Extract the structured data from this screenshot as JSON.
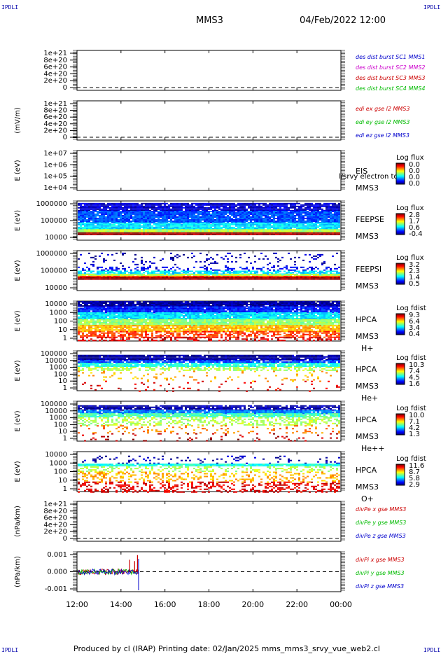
{
  "header": {
    "spacecraft": "MMS3",
    "datetime": "04/Feb/2022 12:00",
    "corner_left": "IPDLI",
    "corner_right": "IPDLI"
  },
  "footer": {
    "text": "Produced by cl (IRAP)   Printing date: 02/Jan/2025   mms_mms3_srvy_vue_web2.cl"
  },
  "chart_data": {
    "type": "heatmap",
    "x": {
      "ticks": [
        "12:00",
        "14:00",
        "16:00",
        "18:00",
        "20:00",
        "22:00",
        "00:00"
      ],
      "range_hours": [
        12,
        24
      ],
      "data_end_hour": 14.8
    },
    "panels": [
      {
        "id": "p1",
        "kind": "lines-empty",
        "ylabel": "",
        "yticks": [
          "1e+21",
          "8e+20",
          "6e+20",
          "4e+20",
          "2e+20",
          "0"
        ],
        "legend": [
          {
            "text": "des dist burst SC1 MMS1",
            "color": "#0000cc"
          },
          {
            "text": "des dist burst SC2 MMS2",
            "color": "#cc00cc"
          },
          {
            "text": "des dist burst SC3 MMS3",
            "color": "#cc0000"
          },
          {
            "text": "des dist burst SC4 MMS4",
            "color": "#00bb00"
          }
        ]
      },
      {
        "id": "p2",
        "kind": "lines-empty",
        "ylabel": "(mV/m)",
        "yticks": [
          "1e+21",
          "8e+20",
          "6e+20",
          "4e+20",
          "2e+20",
          "0"
        ],
        "legend": [
          {
            "text": "edi ex gse l2 MMS3",
            "color": "#cc0000"
          },
          {
            "text": "edi ey gse l2 MMS3",
            "color": "#00bb00"
          },
          {
            "text": "edi ez gse l2 MMS3",
            "color": "#0000cc"
          }
        ]
      },
      {
        "id": "p3",
        "kind": "spectrogram-empty",
        "ylabel": "E (eV)",
        "yticks": [
          "1e+07",
          "1e+06",
          "1e+05",
          "1e+04"
        ],
        "instrument": [
          "EIS",
          "MMS3"
        ],
        "overlay_text": "l/srvy electron to",
        "colorbar": {
          "title": "Log flux",
          "ticks": [
            "0.0",
            "0.0",
            "0.0",
            "0.0"
          ]
        }
      },
      {
        "id": "p4",
        "kind": "spectrogram",
        "ylabel": "E (eV)",
        "yticks": [
          "1000000",
          "100000",
          "10000"
        ],
        "instrument": [
          "FEEPSE",
          "MMS3"
        ],
        "colorbar": {
          "title": "Log flux",
          "ticks": [
            "2.8",
            "1.7",
            "0.6",
            "-0.4"
          ]
        },
        "bands": [
          {
            "from": 0.05,
            "to": 0.25,
            "level": 0.08,
            "density": 0.9
          },
          {
            "from": 0.25,
            "to": 0.55,
            "level": 0.2,
            "density": 0.95
          },
          {
            "from": 0.55,
            "to": 0.72,
            "level": 0.35,
            "density": 0.95
          },
          {
            "from": 0.72,
            "to": 0.8,
            "level": 0.55,
            "density": 1.0
          },
          {
            "from": 0.8,
            "to": 0.86,
            "level": 0.97,
            "density": 1.0
          }
        ]
      },
      {
        "id": "p5",
        "kind": "spectrogram",
        "ylabel": "E (eV)",
        "yticks": [
          "1000000",
          "100000",
          "10000"
        ],
        "instrument": [
          "FEEPSI",
          "MMS3"
        ],
        "colorbar": {
          "title": "Log flux",
          "ticks": [
            "3.2",
            "2.3",
            "1.4",
            "0.5"
          ]
        },
        "bands": [
          {
            "from": 0.05,
            "to": 0.4,
            "level": 0.05,
            "density": 0.12
          },
          {
            "from": 0.4,
            "to": 0.5,
            "level": 0.12,
            "density": 0.35
          },
          {
            "from": 0.5,
            "to": 0.58,
            "level": 0.35,
            "density": 0.75
          },
          {
            "from": 0.58,
            "to": 0.63,
            "level": 0.55,
            "density": 0.9
          },
          {
            "from": 0.63,
            "to": 0.66,
            "level": 0.8,
            "density": 1.0
          },
          {
            "from": 0.66,
            "to": 0.7,
            "level": 0.97,
            "density": 1.0
          }
        ]
      },
      {
        "id": "p6",
        "kind": "spectrogram",
        "ylabel": "E (eV)",
        "yticks": [
          "10000",
          "1000",
          "100",
          "10",
          "1"
        ],
        "instrument": [
          "HPCA",
          "MMS3",
          "H+"
        ],
        "colorbar": {
          "title": "Log fdist",
          "ticks": [
            "9.3",
            "6.4",
            "3.4",
            "0.4"
          ]
        },
        "bands": [
          {
            "from": 0.0,
            "to": 0.13,
            "level": 0.03,
            "density": 0.95
          },
          {
            "from": 0.13,
            "to": 0.28,
            "level": 0.15,
            "density": 0.95
          },
          {
            "from": 0.28,
            "to": 0.45,
            "level": 0.35,
            "density": 0.95
          },
          {
            "from": 0.45,
            "to": 0.6,
            "level": 0.52,
            "density": 0.95
          },
          {
            "from": 0.6,
            "to": 0.75,
            "level": 0.7,
            "density": 0.9
          },
          {
            "from": 0.75,
            "to": 0.9,
            "level": 0.82,
            "density": 0.6
          },
          {
            "from": 0.9,
            "to": 1.0,
            "level": 0.92,
            "density": 0.35
          }
        ]
      },
      {
        "id": "p7",
        "kind": "spectrogram",
        "ylabel": "E (eV)",
        "yticks": [
          "100000",
          "10000",
          "1000",
          "100",
          "10",
          "1"
        ],
        "instrument": [
          "HPCA",
          "MMS3",
          "He+"
        ],
        "colorbar": {
          "title": "Log fdist",
          "ticks": [
            "10.3",
            "7.4",
            "4.5",
            "1.6"
          ]
        },
        "bands": [
          {
            "from": 0.1,
            "to": 0.23,
            "level": 0.03,
            "density": 0.95
          },
          {
            "from": 0.23,
            "to": 0.3,
            "level": 0.18,
            "density": 0.85
          },
          {
            "from": 0.3,
            "to": 0.4,
            "level": 0.4,
            "density": 0.9
          },
          {
            "from": 0.4,
            "to": 0.5,
            "level": 0.55,
            "density": 0.6
          },
          {
            "from": 0.5,
            "to": 0.75,
            "level": 0.7,
            "density": 0.1
          },
          {
            "from": 0.75,
            "to": 1.0,
            "level": 0.9,
            "density": 0.05
          }
        ]
      },
      {
        "id": "p8",
        "kind": "spectrogram",
        "ylabel": "E (eV)",
        "yticks": [
          "100000",
          "10000",
          "1000",
          "100",
          "10",
          "1"
        ],
        "instrument": [
          "HPCA",
          "MMS3",
          "He++"
        ],
        "colorbar": {
          "title": "Log fdist",
          "ticks": [
            "10.0",
            "7.1",
            "4.2",
            "1.3"
          ]
        },
        "bands": [
          {
            "from": 0.1,
            "to": 0.22,
            "level": 0.04,
            "density": 0.85
          },
          {
            "from": 0.22,
            "to": 0.3,
            "level": 0.25,
            "density": 0.9
          },
          {
            "from": 0.3,
            "to": 0.4,
            "level": 0.45,
            "density": 0.9
          },
          {
            "from": 0.4,
            "to": 0.6,
            "level": 0.55,
            "density": 0.45
          },
          {
            "from": 0.6,
            "to": 0.8,
            "level": 0.75,
            "density": 0.15
          },
          {
            "from": 0.8,
            "to": 1.0,
            "level": 0.95,
            "density": 0.08
          }
        ]
      },
      {
        "id": "p9",
        "kind": "spectrogram",
        "ylabel": "E (eV)",
        "yticks": [
          "10000",
          "1000",
          "100",
          "10",
          "1"
        ],
        "instrument": [
          "HPCA",
          "MMS3",
          "O+"
        ],
        "colorbar": {
          "title": "Log fdist",
          "ticks": [
            "11.6",
            "8.7",
            "5.8",
            "2.9"
          ]
        },
        "bands": [
          {
            "from": 0.1,
            "to": 0.3,
            "level": 0.05,
            "density": 0.12
          },
          {
            "from": 0.3,
            "to": 0.37,
            "level": 0.4,
            "density": 0.95
          },
          {
            "from": 0.37,
            "to": 0.5,
            "level": 0.55,
            "density": 0.35
          },
          {
            "from": 0.5,
            "to": 0.75,
            "level": 0.7,
            "density": 0.3
          },
          {
            "from": 0.75,
            "to": 1.0,
            "level": 0.9,
            "density": 0.35
          }
        ]
      },
      {
        "id": "p10",
        "kind": "lines-empty",
        "ylabel": "(nPa/km)",
        "yticks": [
          "1e+21",
          "8e+20",
          "6e+20",
          "4e+20",
          "2e+20",
          "0"
        ],
        "legend": [
          {
            "text": "divPe x gse MMS3",
            "color": "#cc0000"
          },
          {
            "text": "divPe y gse MMS3",
            "color": "#00bb00"
          },
          {
            "text": "divPe z gse MMS3",
            "color": "#0000cc"
          }
        ]
      },
      {
        "id": "p11",
        "kind": "lines",
        "ylabel": "(nPa/km)",
        "yticks": [
          "0.001",
          "0.000",
          "-0.001"
        ],
        "ylim": [
          -0.0015,
          0.0015
        ],
        "legend": [
          {
            "text": "divPi x gse MMS3",
            "color": "#cc0000"
          },
          {
            "text": "divPi y gse MMS3",
            "color": "#00bb00"
          },
          {
            "text": "divPi z gse MMS3",
            "color": "#0000cc"
          }
        ],
        "data_end_hour": 14.8,
        "spikes": [
          {
            "hour": 14.4,
            "value": 0.0009,
            "series": "x"
          },
          {
            "hour": 14.62,
            "value": 0.0008,
            "series": "x"
          },
          {
            "hour": 14.75,
            "value": 0.00125,
            "series": "x"
          }
        ]
      }
    ]
  }
}
